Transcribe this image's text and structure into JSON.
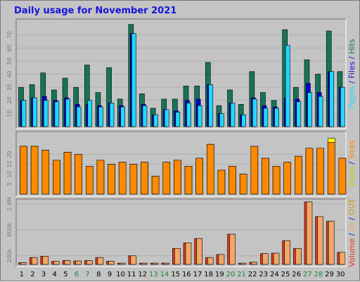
{
  "chart_data": {
    "type": "bar",
    "title": "Daily usage for November 2021",
    "days": [
      "1",
      "2",
      "3",
      "4",
      "5",
      "6",
      "7",
      "8",
      "9",
      "10",
      "11",
      "12",
      "13",
      "14",
      "15",
      "16",
      "17",
      "18",
      "19",
      "20",
      "21",
      "22",
      "23",
      "24",
      "25",
      "26",
      "27",
      "28",
      "29",
      "30"
    ],
    "weekend_days": [
      "6",
      "7",
      "13",
      "14",
      "20",
      "21",
      "27",
      "28"
    ],
    "colors": {
      "hits": "#167458",
      "files": "#0000d6",
      "pages": "#22d8ff",
      "visits": "#ffff00",
      "sites": "#ff8a00",
      "volume": "#e0391a",
      "in": "#f0a868",
      "out": "#e8b800",
      "weekend": "#1a8a3a",
      "axis_text": "#8a8a8a"
    },
    "panels": [
      {
        "name": "hits-files-pages",
        "ylim": [
          0,
          80
        ],
        "ticks": [
          "70",
          "60",
          "50",
          "40",
          "30",
          "20",
          "10"
        ],
        "side_label": [
          {
            "text": "Pages",
            "color": "#22d8ff"
          },
          {
            "text": " / ",
            "color": "#1414dc"
          },
          {
            "text": "Files",
            "color": "#1414dc"
          },
          {
            "text": " / ",
            "color": "#1414dc"
          },
          {
            "text": "Hits",
            "color": "#167458"
          }
        ],
        "series": [
          {
            "key": "hits",
            "values": [
              30,
              32,
              41,
              28,
              37,
              30,
              47,
              26,
              45,
              21,
              78,
              25,
              14,
              21,
              21,
              31,
              31,
              49,
              16,
              28,
              17,
              42,
              26,
              20,
              74,
              30,
              51,
              40,
              73,
              42
            ]
          },
          {
            "key": "files",
            "values": [
              20,
              22,
              23,
              20,
              22,
              17,
              17,
              16,
              18,
              16,
              71,
              17,
              9,
              13,
              12,
              20,
              21,
              32,
              10,
              18,
              9,
              22,
              16,
              15,
              22,
              21,
              33,
              26,
              42,
              30
            ]
          },
          {
            "key": "pages",
            "values": [
              20,
              22,
              20,
              19,
              21,
              15,
              20,
              15,
              18,
              15,
              71,
              16,
              9,
              13,
              11,
              18,
              16,
              32,
              10,
              18,
              9,
              21,
              14,
              14,
              62,
              19,
              26,
              23,
              42,
              30
            ]
          }
        ]
      },
      {
        "name": "visits-sites",
        "ylim": [
          0,
          30
        ],
        "ticks": [
          "20",
          "15",
          "10",
          "5"
        ],
        "side_label": [
          {
            "text": "Visits",
            "color": "#c8c800"
          },
          {
            "text": " / ",
            "color": "#1414dc"
          },
          {
            "text": "Sites",
            "color": "#ff8a00"
          }
        ],
        "series": [
          {
            "key": "visits",
            "values": [
              24,
              24,
              22,
              17,
              21,
              20,
              14,
              17,
              15,
              16,
              15,
              16,
              9,
              16,
              17,
              14,
              18,
              25,
              12,
              14,
              10,
              24,
              18,
              14,
              16,
              19,
              23,
              23,
              28,
              18
            ]
          },
          {
            "key": "sites",
            "values": [
              24,
              24,
              22,
              17,
              21,
              20,
              14,
              17,
              15,
              16,
              15,
              16,
              9,
              16,
              17,
              14,
              18,
              25,
              12,
              14,
              10,
              24,
              18,
              14,
              16,
              19,
              23,
              23,
              26,
              18
            ]
          }
        ]
      },
      {
        "name": "volume-in-out",
        "ylim": [
          0,
          1450
        ],
        "ticks": [
          "1.4M",
          "800k",
          "200k"
        ],
        "side_label": [
          {
            "text": "Volume",
            "color": "#e0391a"
          },
          {
            "text": " / ",
            "color": "#1414dc"
          },
          {
            "text": "IN",
            "color": "#f0a868"
          },
          {
            "text": " / ",
            "color": "#1414dc"
          },
          {
            "text": "OUT",
            "color": "#c8a000"
          }
        ],
        "series": [
          {
            "key": "volume",
            "values": [
              40,
              160,
              190,
              70,
              90,
              80,
              90,
              160,
              75,
              30,
              200,
              30,
              30,
              30,
              370,
              500,
              600,
              160,
              230,
              700,
              30,
              50,
              250,
              260,
              550,
              370,
              1450,
              1110,
              1000,
              280
            ]
          },
          {
            "key": "in",
            "values": [
              40,
              160,
              190,
              70,
              90,
              80,
              90,
              160,
              75,
              30,
              200,
              30,
              30,
              30,
              370,
              500,
              600,
              160,
              230,
              700,
              30,
              50,
              250,
              260,
              550,
              370,
              1450,
              1110,
              1000,
              280
            ]
          }
        ]
      }
    ]
  }
}
